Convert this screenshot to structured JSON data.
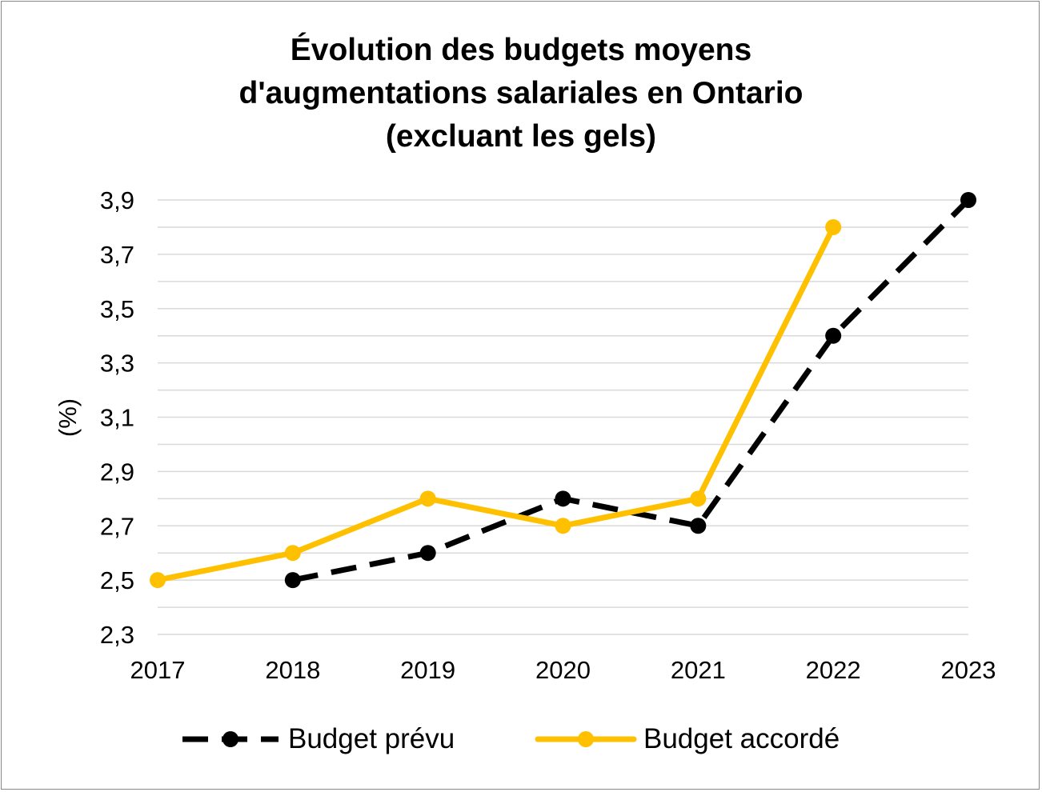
{
  "chart_data": {
    "type": "line",
    "title_lines": [
      "Évolution des budgets moyens",
      "d'augmentations salariales en Ontario",
      "(excluant les gels)"
    ],
    "xlabel": "",
    "ylabel": "(%)",
    "categories": [
      "2017",
      "2018",
      "2019",
      "2020",
      "2021",
      "2022",
      "2023"
    ],
    "y_ticks": [
      "2,3",
      "2,5",
      "2,7",
      "2,9",
      "3,1",
      "3,3",
      "3,5",
      "3,7",
      "3,9"
    ],
    "ylim": [
      2.3,
      3.9
    ],
    "grid": true,
    "legend_position": "bottom",
    "series": [
      {
        "name": "Budget prévu",
        "color": "#000000",
        "style": "dashed",
        "values": [
          null,
          2.5,
          2.6,
          2.8,
          2.7,
          3.4,
          3.9
        ]
      },
      {
        "name": "Budget accordé",
        "color": "#FFC000",
        "style": "solid",
        "values": [
          2.5,
          2.6,
          2.8,
          2.7,
          2.8,
          3.8,
          null
        ]
      }
    ]
  }
}
